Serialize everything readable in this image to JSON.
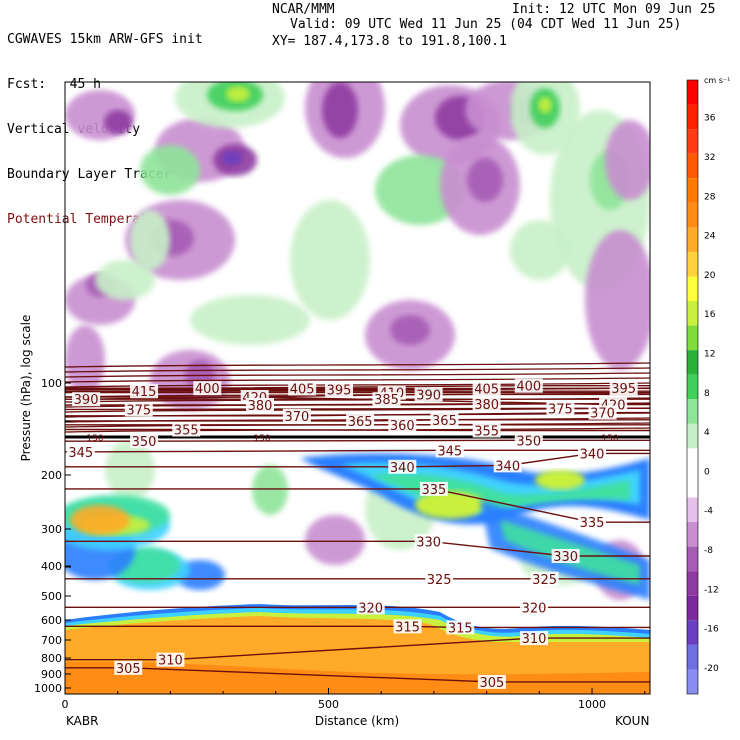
{
  "header": {
    "title": "CGWAVES 15km ARW-GFS init",
    "fcst": "Fcst:   45 h",
    "field1": "Vertical velocity",
    "field2": "Boundary Layer Tracer",
    "field3": "Potential Temperature",
    "center": "NCAR/MMM",
    "init": "Init: 12 UTC Mon 09 Jun 25",
    "valid": "Valid: 09 UTC Wed 11 Jun 25 (04 CDT Wed 11 Jun 25)",
    "xy": "XY= 187.4,173.8 to 191.8,100.1",
    "field3_color": "#7a1010"
  },
  "chart_data": {
    "type": "heatmap",
    "xlabel": "Distance (km)",
    "ylabel": "Pressure (hPa), log scale",
    "xlim": [
      0,
      1110
    ],
    "x_ticks": [
      0,
      500,
      1000
    ],
    "y_ticks": [
      100,
      200,
      300,
      400,
      500,
      600,
      700,
      800,
      900,
      1000
    ],
    "y_scale": "log",
    "ylim_hpa": [
      1000,
      25
    ],
    "left_endpoint": "KABR",
    "right_endpoint": "KOUN",
    "colorbar": {
      "unit": "cm s⁻¹",
      "levels": [
        -20,
        -16,
        -12,
        -8,
        -4,
        0,
        4,
        8,
        12,
        16,
        20,
        24,
        28,
        32,
        36
      ],
      "colors": [
        "#8a8cf0",
        "#6f6fe0",
        "#6a3fc0",
        "#7a2a9a",
        "#8e3aa0",
        "#a55cb4",
        "#c88ed0",
        "#e6c0ea",
        "#ffffff",
        "#ffffff",
        "#c8f0c8",
        "#8fe49a",
        "#3fcf5a",
        "#2bb03a",
        "#7fdc3a",
        "#c8f03c",
        "#ffff3c",
        "#ffd23c",
        "#ffaa28",
        "#ff8c14",
        "#ff7800",
        "#ff5a00",
        "#ff3c14",
        "#ff2000",
        "#ff0000"
      ]
    },
    "theta_contours": [
      {
        "value": 415,
        "label_x_km": 150,
        "p_hpa": 94
      },
      {
        "value": 420,
        "label_x_km": 360,
        "p_hpa": 90
      },
      {
        "value": 405,
        "label_x_km": 450,
        "p_hpa": 96
      },
      {
        "value": 410,
        "label_x_km": 620,
        "p_hpa": 93
      },
      {
        "value": 405,
        "label_x_km": 800,
        "p_hpa": 96
      },
      {
        "value": 400,
        "label_x_km": 880,
        "p_hpa": 98
      },
      {
        "value": 420,
        "label_x_km": 1040,
        "p_hpa": 85
      },
      {
        "value": 400,
        "label_x_km": 270,
        "p_hpa": 104
      },
      {
        "value": 395,
        "label_x_km": 520,
        "p_hpa": 105
      },
      {
        "value": 395,
        "label_x_km": 1060,
        "p_hpa": 104
      },
      {
        "value": 390,
        "label_x_km": 40,
        "p_hpa": 113
      },
      {
        "value": 390,
        "label_x_km": 690,
        "p_hpa": 109
      },
      {
        "value": 385,
        "label_x_km": 610,
        "p_hpa": 113
      },
      {
        "value": 380,
        "label_x_km": 370,
        "p_hpa": 118
      },
      {
        "value": 380,
        "label_x_km": 800,
        "p_hpa": 117
      },
      {
        "value": 375,
        "label_x_km": 140,
        "p_hpa": 122
      },
      {
        "value": 375,
        "label_x_km": 940,
        "p_hpa": 121
      },
      {
        "value": 370,
        "label_x_km": 440,
        "p_hpa": 128
      },
      {
        "value": 370,
        "label_x_km": 1020,
        "p_hpa": 125
      },
      {
        "value": 365,
        "label_x_km": 560,
        "p_hpa": 133
      },
      {
        "value": 365,
        "label_x_km": 720,
        "p_hpa": 132
      },
      {
        "value": 360,
        "label_x_km": 640,
        "p_hpa": 137
      },
      {
        "value": 355,
        "label_x_km": 230,
        "p_hpa": 142
      },
      {
        "value": 355,
        "label_x_km": 800,
        "p_hpa": 143
      },
      {
        "value": 350,
        "label_x_km": 150,
        "p_hpa": 155
      },
      {
        "value": 350,
        "label_x_km": 880,
        "p_hpa": 154
      },
      {
        "value": 345,
        "label_x_km": 30,
        "p_hpa": 168
      },
      {
        "value": 345,
        "label_x_km": 730,
        "p_hpa": 166
      },
      {
        "value": 340,
        "label_x_km": 640,
        "p_hpa": 188
      },
      {
        "value": 340,
        "label_x_km": 840,
        "p_hpa": 186
      },
      {
        "value": 340,
        "label_x_km": 1000,
        "p_hpa": 170
      },
      {
        "value": 335,
        "label_x_km": 700,
        "p_hpa": 222
      },
      {
        "value": 335,
        "label_x_km": 1000,
        "p_hpa": 285
      },
      {
        "value": 330,
        "label_x_km": 690,
        "p_hpa": 330
      },
      {
        "value": 330,
        "label_x_km": 950,
        "p_hpa": 370
      },
      {
        "value": 325,
        "label_x_km": 710,
        "p_hpa": 440
      },
      {
        "value": 325,
        "label_x_km": 910,
        "p_hpa": 440
      },
      {
        "value": 320,
        "label_x_km": 580,
        "p_hpa": 545
      },
      {
        "value": 320,
        "label_x_km": 890,
        "p_hpa": 545
      },
      {
        "value": 315,
        "label_x_km": 650,
        "p_hpa": 630
      },
      {
        "value": 315,
        "label_x_km": 750,
        "p_hpa": 635
      },
      {
        "value": 310,
        "label_x_km": 200,
        "p_hpa": 810
      },
      {
        "value": 310,
        "label_x_km": 890,
        "p_hpa": 690
      },
      {
        "value": 305,
        "label_x_km": 120,
        "p_hpa": 860
      },
      {
        "value": 305,
        "label_x_km": 810,
        "p_hpa": 955
      }
    ],
    "tracer_label": "150"
  }
}
